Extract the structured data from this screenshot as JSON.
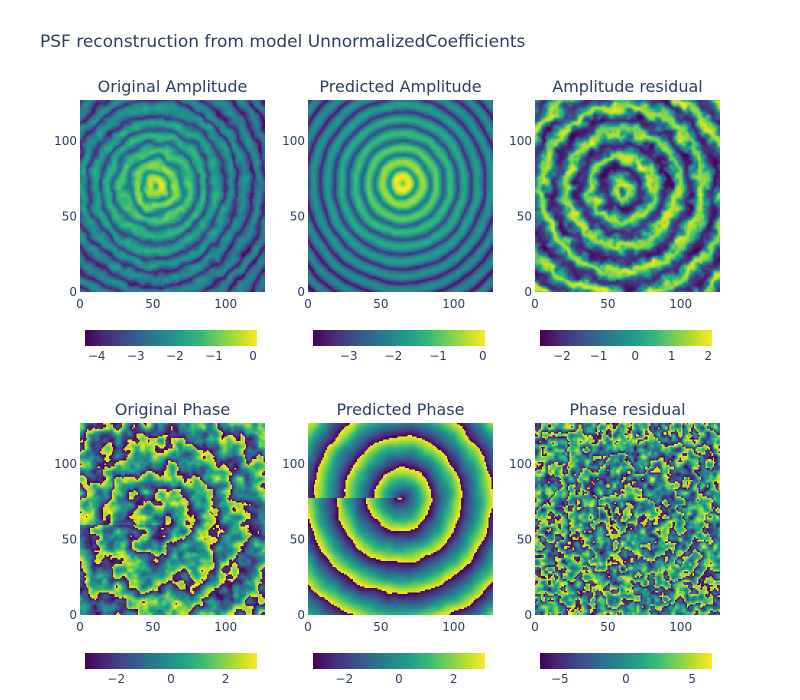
{
  "title": "PSF reconstruction from model UnnormalizedCoefficients",
  "colorscale": [
    "#440154",
    "#482878",
    "#3e4989",
    "#31688e",
    "#26828e",
    "#1f9e89",
    "#35b779",
    "#6ece58",
    "#b5de2b",
    "#fde725"
  ],
  "chart_data": [
    {
      "type": "heatmap",
      "title": "Original Amplitude",
      "x_range": [
        0,
        127
      ],
      "y_range": [
        0,
        127
      ],
      "x_ticks": [
        0,
        50,
        100
      ],
      "y_ticks": [
        0,
        50,
        100
      ],
      "colorbar": {
        "range": [
          -4.3,
          0.1
        ],
        "ticks": [
          -4,
          -3,
          -2,
          -1,
          0
        ],
        "tick_labels": [
          "−4",
          "−3",
          "−2",
          "−1",
          "0"
        ]
      },
      "pattern": {
        "kind": "amplitude",
        "center": [
          52,
          70
        ],
        "ring_spacing": 9.5,
        "noise": 0.55
      }
    },
    {
      "type": "heatmap",
      "title": "Predicted Amplitude",
      "x_range": [
        0,
        127
      ],
      "y_range": [
        0,
        127
      ],
      "x_ticks": [
        0,
        50,
        100
      ],
      "y_ticks": [
        0,
        50,
        100
      ],
      "colorbar": {
        "range": [
          -3.8,
          0.05
        ],
        "ticks": [
          -3,
          -2,
          -1,
          0
        ],
        "tick_labels": [
          "−3",
          "−2",
          "−1",
          "0"
        ]
      },
      "pattern": {
        "kind": "amplitude",
        "center": [
          65,
          72
        ],
        "ring_spacing": 9.5,
        "noise": 0.15
      }
    },
    {
      "type": "heatmap",
      "title": "Amplitude residual",
      "x_range": [
        0,
        127
      ],
      "y_range": [
        0,
        127
      ],
      "x_ticks": [
        0,
        50,
        100
      ],
      "y_ticks": [
        0,
        50,
        100
      ],
      "colorbar": {
        "range": [
          -2.6,
          2.1
        ],
        "ticks": [
          -2,
          -1,
          0,
          1,
          2
        ],
        "tick_labels": [
          "−2",
          "−1",
          "0",
          "1",
          "2"
        ]
      },
      "pattern": {
        "kind": "residual",
        "center": [
          60,
          68
        ],
        "ring_spacing": 8.5,
        "noise": 0.6
      }
    },
    {
      "type": "heatmap",
      "title": "Original Phase",
      "x_range": [
        0,
        127
      ],
      "y_range": [
        0,
        127
      ],
      "x_ticks": [
        0,
        50,
        100
      ],
      "y_ticks": [
        0,
        50,
        100
      ],
      "colorbar": {
        "range": [
          -3.1416,
          3.1416
        ],
        "ticks": [
          -2,
          0,
          2
        ],
        "tick_labels": [
          "−2",
          "0",
          "2"
        ]
      },
      "pattern": {
        "kind": "phase",
        "center": [
          55,
          60
        ],
        "ring_spacing": 20,
        "noise": 1.0
      }
    },
    {
      "type": "heatmap",
      "title": "Predicted Phase",
      "x_range": [
        0,
        127
      ],
      "y_range": [
        0,
        127
      ],
      "x_ticks": [
        0,
        50,
        100
      ],
      "y_ticks": [
        0,
        50,
        100
      ],
      "colorbar": {
        "range": [
          -3.1416,
          3.1416
        ],
        "ticks": [
          -2,
          0,
          2
        ],
        "tick_labels": [
          "−2",
          "0",
          "2"
        ]
      },
      "pattern": {
        "kind": "phase",
        "center": [
          64,
          78
        ],
        "ring_spacing": 21,
        "noise": 0.12
      }
    },
    {
      "type": "heatmap",
      "title": "Phase residual",
      "x_range": [
        0,
        127
      ],
      "y_range": [
        0,
        127
      ],
      "x_ticks": [
        0,
        50,
        100
      ],
      "y_ticks": [
        0,
        50,
        100
      ],
      "colorbar": {
        "range": [
          -6.5,
          6.5
        ],
        "ticks": [
          -5,
          0,
          5
        ],
        "tick_labels": [
          "−5",
          "0",
          "5"
        ]
      },
      "pattern": {
        "kind": "phaseresidual",
        "center": [
          62,
          72
        ],
        "ring_spacing": 19,
        "noise": 1.0
      }
    }
  ]
}
